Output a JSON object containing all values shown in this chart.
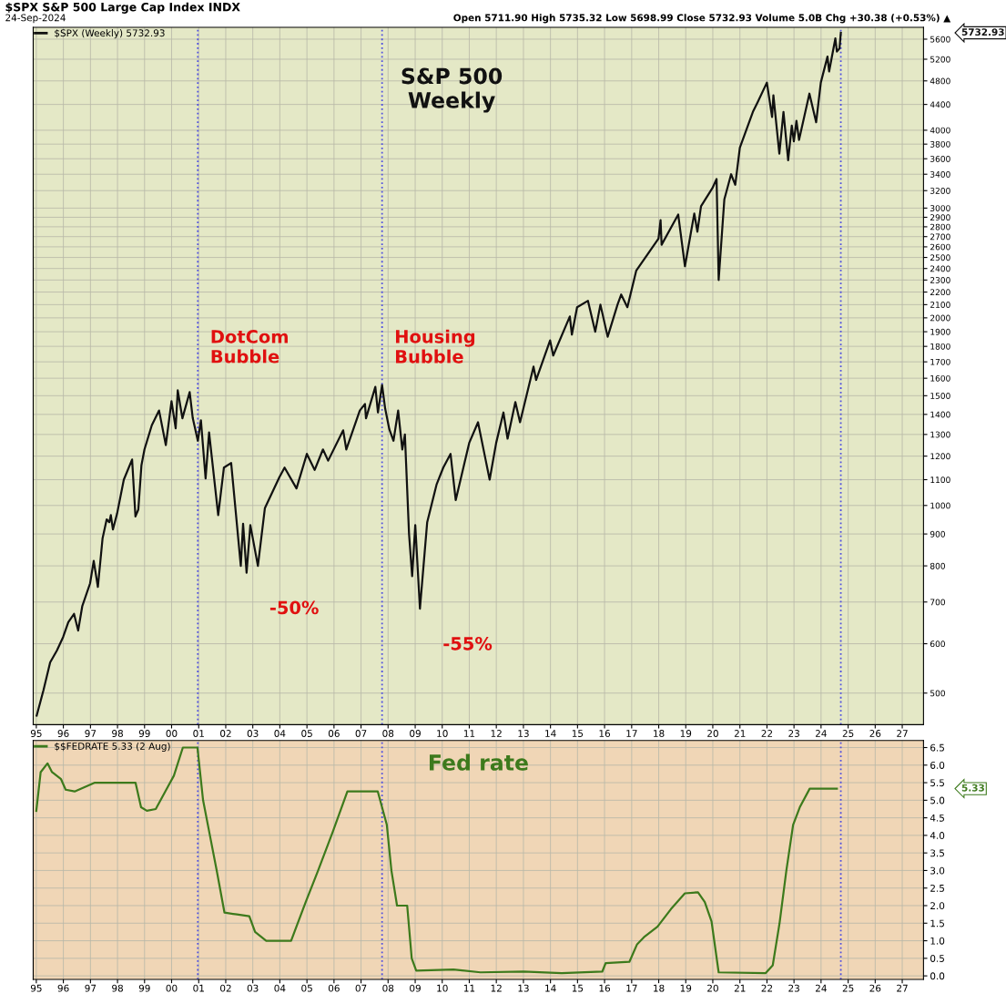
{
  "chart_data": [
    {
      "type": "line",
      "title": "$SPX S&P 500 Large Cap Index INDX",
      "subtitle": "24-Sep-2024",
      "annotations": [
        "Open 5711.90 High 5735.32 Low 5698.99 Close 5732.93 Volume 5.0B Chg +30.38 (+0.53%) ▲",
        "S&P 500\nWeekly",
        {
          "text": "-50%",
          "x": "2002-10-09",
          "y": 780
        },
        {
          "text": "-55%",
          "x": "2009-03-06",
          "y": 683
        },
        "5732.93"
      ],
      "series": [
        {
          "name": "$SPX (Weekly) 5732.93",
          "color": "#111111",
          "x": [
            "1995-01-06",
            "1995-04-07",
            "1995-07-07",
            "1995-10-06",
            "1995-12-29",
            "1996-03-08",
            "1996-05-24",
            "1996-07-19",
            "1996-09-13",
            "1996-12-27",
            "1997-02-14",
            "1997-04-11",
            "1997-06-13",
            "1997-08-08",
            "1997-09-12",
            "1997-10-03",
            "1997-10-31",
            "1997-12-26",
            "1998-03-27",
            "1998-07-17",
            "1998-08-31",
            "1998-10-09",
            "1998-11-20",
            "1998-12-31",
            "1999-04-09",
            "1999-07-16",
            "1999-10-15",
            "1999-12-31",
            "2000-02-25",
            "2000-03-24",
            "2000-05-26",
            "2000-09-01",
            "2000-10-13",
            "2000-12-20",
            "2001-01-31",
            "2001-04-04",
            "2001-05-21",
            "2001-09-21",
            "2001-12-07",
            "2002-03-15",
            "2002-07-23",
            "2002-08-23",
            "2002-10-09",
            "2002-11-29",
            "2003-03-11",
            "2003-06-13",
            "2003-12-26",
            "2004-03-05",
            "2004-08-13",
            "2004-12-31",
            "2005-04-15",
            "2005-08-05",
            "2005-10-14",
            "2006-05-05",
            "2006-06-16",
            "2006-12-15",
            "2007-02-23",
            "2007-03-09",
            "2007-07-13",
            "2007-08-17",
            "2007-10-12",
            "2007-11-23",
            "2008-01-18",
            "2008-03-14",
            "2008-05-16",
            "2008-07-11",
            "2008-08-15",
            "2008-10-10",
            "2008-11-21",
            "2009-01-02",
            "2009-03-06",
            "2009-06-12",
            "2009-10-16",
            "2010-01-15",
            "2010-04-23",
            "2010-07-02",
            "2010-12-31",
            "2011-04-29",
            "2011-08-12",
            "2011-10-03",
            "2011-12-30",
            "2012-04-06",
            "2012-06-01",
            "2012-09-14",
            "2012-11-16",
            "2013-05-17",
            "2013-06-21",
            "2013-12-27",
            "2014-02-07",
            "2014-09-19",
            "2014-10-17",
            "2014-12-26",
            "2015-05-22",
            "2015-08-28",
            "2015-11-06",
            "2016-02-12",
            "2016-06-24",
            "2016-08-12",
            "2016-11-04",
            "2017-03-03",
            "2017-12-29",
            "2018-01-26",
            "2018-02-09",
            "2018-09-21",
            "2018-12-21",
            "2019-04-26",
            "2019-06-07",
            "2019-07-26",
            "2019-12-27",
            "2020-02-21",
            "2020-03-20",
            "2020-06-05",
            "2020-09-04",
            "2020-10-30",
            "2020-12-31",
            "2021-06-25",
            "2021-09-03",
            "2021-12-31",
            "2022-03-11",
            "2022-03-29",
            "2022-06-17",
            "2022-08-12",
            "2022-10-14",
            "2022-12-02",
            "2022-12-30",
            "2023-02-03",
            "2023-03-10",
            "2023-07-28",
            "2023-10-27",
            "2023-12-29",
            "2024-03-28",
            "2024-04-19",
            "2024-07-12",
            "2024-08-02",
            "2024-09-06",
            "2024-09-24"
          ],
          "values": [
            460,
            505,
            560,
            585,
            615,
            650,
            670,
            630,
            690,
            750,
            815,
            740,
            885,
            950,
            940,
            965,
            915,
            970,
            1100,
            1185,
            960,
            985,
            1160,
            1230,
            1345,
            1420,
            1250,
            1470,
            1330,
            1530,
            1380,
            1520,
            1380,
            1270,
            1370,
            1105,
            1310,
            965,
            1150,
            1170,
            800,
            935,
            780,
            930,
            800,
            990,
            1110,
            1150,
            1065,
            1210,
            1140,
            1230,
            1180,
            1320,
            1230,
            1420,
            1455,
            1380,
            1550,
            1410,
            1560,
            1430,
            1325,
            1270,
            1420,
            1230,
            1300,
            900,
            770,
            930,
            683,
            940,
            1080,
            1150,
            1210,
            1020,
            1260,
            1360,
            1180,
            1100,
            1260,
            1410,
            1280,
            1465,
            1360,
            1670,
            1590,
            1840,
            1740,
            2010,
            1880,
            2080,
            2130,
            1900,
            2100,
            1865,
            2100,
            2180,
            2080,
            2380,
            2680,
            2870,
            2620,
            2930,
            2420,
            2940,
            2750,
            3020,
            3230,
            3340,
            2300,
            3100,
            3400,
            3270,
            3750,
            4280,
            4450,
            4770,
            4200,
            4550,
            3670,
            4280,
            3580,
            4070,
            3840,
            4140,
            3860,
            4580,
            4120,
            4770,
            5250,
            4970,
            5615,
            5350,
            5410,
            5732.93
          ]
        }
      ],
      "log": "y",
      "ylim": [
        445,
        5850
      ],
      "yticks": [
        500,
        600,
        700,
        800,
        900,
        1000,
        1100,
        1200,
        1300,
        1400,
        1500,
        1600,
        1700,
        1800,
        1900,
        2000,
        2100,
        2200,
        2300,
        2400,
        2500,
        2600,
        2700,
        2800,
        2900,
        3000,
        3200,
        3400,
        3600,
        3800,
        4000,
        4400,
        4800,
        5200,
        5600
      ],
      "xlim": [
        "1994-11-20",
        "2027-10-15"
      ],
      "xticks": [
        {
          "value": "1995-01-01",
          "label": "95"
        },
        {
          "value": "1996-01-01",
          "label": "96"
        },
        {
          "value": "1997-01-01",
          "label": "97"
        },
        {
          "value": "1998-01-01",
          "label": "98"
        },
        {
          "value": "1999-01-01",
          "label": "99"
        },
        {
          "value": "2000-01-01",
          "label": "00"
        },
        {
          "value": "2001-01-01",
          "label": "01"
        },
        {
          "value": "2002-01-01",
          "label": "02"
        },
        {
          "value": "2003-01-01",
          "label": "03"
        },
        {
          "value": "2004-01-01",
          "label": "04"
        },
        {
          "value": "2005-01-01",
          "label": "05"
        },
        {
          "value": "2006-01-01",
          "label": "06"
        },
        {
          "value": "2007-01-01",
          "label": "07"
        },
        {
          "value": "2008-01-01",
          "label": "08"
        },
        {
          "value": "2009-01-01",
          "label": "09"
        },
        {
          "value": "2010-01-01",
          "label": "10"
        },
        {
          "value": "2011-01-01",
          "label": "11"
        },
        {
          "value": "2012-01-01",
          "label": "12"
        },
        {
          "value": "2013-01-01",
          "label": "13"
        },
        {
          "value": "2014-01-01",
          "label": "14"
        },
        {
          "value": "2015-01-01",
          "label": "15"
        },
        {
          "value": "2016-01-01",
          "label": "16"
        },
        {
          "value": "2017-01-01",
          "label": "17"
        },
        {
          "value": "2018-01-01",
          "label": "18"
        },
        {
          "value": "2019-01-01",
          "label": "19"
        },
        {
          "value": "2020-01-01",
          "label": "20"
        },
        {
          "value": "2021-01-01",
          "label": "21"
        },
        {
          "value": "2022-01-01",
          "label": "22"
        },
        {
          "value": "2023-01-01",
          "label": "23"
        },
        {
          "value": "2024-01-01",
          "label": "24"
        },
        {
          "value": "2025-01-01",
          "label": "25"
        },
        {
          "value": "2026-01-01",
          "label": "26"
        },
        {
          "value": "2027-01-01",
          "label": "27"
        }
      ],
      "ref_lines": [
        {
          "axis": "x",
          "value": "2000-12-20",
          "label": "DotCom\nBubble",
          "color": "#5050e0",
          "line_style": "dotted"
        },
        {
          "axis": "x",
          "value": "2007-10-12",
          "label": "Housing\nBubble",
          "color": "#5050e0",
          "line_style": "dotted"
        },
        {
          "axis": "x",
          "value": "2024-09-24",
          "label": null,
          "color": "#5050e0",
          "line_style": "dotted"
        }
      ],
      "grid": true,
      "legend": "top left",
      "line_style": "solid",
      "marker": "none"
    },
    {
      "type": "line",
      "title": "Fed rate",
      "annotations": [
        "5.33"
      ],
      "series": [
        {
          "name": "$$FEDRATE 5.33 (2 Aug)",
          "color": "#3d7a1c",
          "x": [
            "1995-01-01",
            "1995-03-01",
            "1995-06-01",
            "1995-08-01",
            "1995-12-01",
            "1996-02-01",
            "1996-06-01",
            "1997-03-01",
            "1997-12-01",
            "1998-09-01",
            "1998-11-15",
            "1999-02-01",
            "1999-06-01",
            "1999-11-15",
            "2000-02-01",
            "2000-06-01",
            "2000-12-15",
            "2001-03-01",
            "2001-06-01",
            "2001-09-01",
            "2001-12-15",
            "2002-06-01",
            "2002-11-15",
            "2003-02-01",
            "2003-07-01",
            "2004-06-01",
            "2004-12-15",
            "2005-06-01",
            "2005-12-15",
            "2006-07-01",
            "2007-08-15",
            "2007-12-15",
            "2008-02-15",
            "2008-05-01",
            "2008-09-15",
            "2008-11-15",
            "2009-01-15",
            "2010-06-01",
            "2011-06-01",
            "2013-01-01",
            "2014-06-01",
            "2015-12-01",
            "2016-01-15",
            "2016-12-01",
            "2017-03-15",
            "2017-06-15",
            "2017-12-15",
            "2018-06-15",
            "2018-12-20",
            "2019-06-15",
            "2019-09-15",
            "2019-12-15",
            "2020-03-20",
            "2021-12-15",
            "2022-03-20",
            "2022-06-20",
            "2022-09-20",
            "2022-12-20",
            "2023-03-20",
            "2023-08-01",
            "2024-08-02"
          ],
          "values": [
            4.7,
            5.8,
            6.05,
            5.8,
            5.6,
            5.3,
            5.25,
            5.5,
            5.5,
            5.5,
            4.8,
            4.7,
            4.75,
            5.4,
            5.7,
            6.5,
            6.5,
            5.0,
            4.0,
            3.0,
            1.8,
            1.75,
            1.7,
            1.25,
            1.0,
            1.0,
            2.1,
            3.0,
            4.1,
            5.25,
            5.25,
            4.3,
            3.0,
            2.0,
            2.0,
            0.5,
            0.15,
            0.18,
            0.1,
            0.12,
            0.08,
            0.12,
            0.36,
            0.4,
            0.9,
            1.1,
            1.4,
            1.9,
            2.35,
            2.38,
            2.1,
            1.55,
            0.1,
            0.08,
            0.3,
            1.5,
            3.0,
            4.3,
            4.8,
            5.33,
            5.33
          ]
        }
      ],
      "ylim": [
        -0.1,
        6.7
      ],
      "yticks": [
        {
          "value": 0,
          "label": "0.0"
        },
        0.5,
        {
          "value": 1,
          "label": "1.0"
        },
        1.5,
        {
          "value": 2,
          "label": "2.0"
        },
        2.5,
        {
          "value": 3,
          "label": "3.0"
        },
        3.5,
        {
          "value": 4,
          "label": "4.0"
        },
        4.5,
        {
          "value": 5,
          "label": "5.0"
        },
        5.5,
        {
          "value": 6,
          "label": "6.0"
        },
        6.5
      ],
      "xlim": [
        "1994-11-20",
        "2027-10-15"
      ],
      "xticks": [
        {
          "value": "1995-01-01",
          "label": "95"
        },
        {
          "value": "1996-01-01",
          "label": "96"
        },
        {
          "value": "1997-01-01",
          "label": "97"
        },
        {
          "value": "1998-01-01",
          "label": "98"
        },
        {
          "value": "1999-01-01",
          "label": "99"
        },
        {
          "value": "2000-01-01",
          "label": "00"
        },
        {
          "value": "2001-01-01",
          "label": "01"
        },
        {
          "value": "2002-01-01",
          "label": "02"
        },
        {
          "value": "2003-01-01",
          "label": "03"
        },
        {
          "value": "2004-01-01",
          "label": "04"
        },
        {
          "value": "2005-01-01",
          "label": "05"
        },
        {
          "value": "2006-01-01",
          "label": "06"
        },
        {
          "value": "2007-01-01",
          "label": "07"
        },
        {
          "value": "2008-01-01",
          "label": "08"
        },
        {
          "value": "2009-01-01",
          "label": "09"
        },
        {
          "value": "2010-01-01",
          "label": "10"
        },
        {
          "value": "2011-01-01",
          "label": "11"
        },
        {
          "value": "2012-01-01",
          "label": "12"
        },
        {
          "value": "2013-01-01",
          "label": "13"
        },
        {
          "value": "2014-01-01",
          "label": "14"
        },
        {
          "value": "2015-01-01",
          "label": "15"
        },
        {
          "value": "2016-01-01",
          "label": "16"
        },
        {
          "value": "2017-01-01",
          "label": "17"
        },
        {
          "value": "2018-01-01",
          "label": "18"
        },
        {
          "value": "2019-01-01",
          "label": "19"
        },
        {
          "value": "2020-01-01",
          "label": "20"
        },
        {
          "value": "2021-01-01",
          "label": "21"
        },
        {
          "value": "2022-01-01",
          "label": "22"
        },
        {
          "value": "2023-01-01",
          "label": "23"
        },
        {
          "value": "2024-01-01",
          "label": "24"
        },
        {
          "value": "2025-01-01",
          "label": "25"
        },
        {
          "value": "2026-01-01",
          "label": "26"
        },
        {
          "value": "2027-01-01",
          "label": "27"
        }
      ],
      "ref_lines": [
        {
          "axis": "x",
          "value": "2000-12-20",
          "label": null,
          "color": "#5050e0",
          "line_style": "dotted"
        },
        {
          "axis": "x",
          "value": "2007-10-12",
          "label": null,
          "color": "#5050e0",
          "line_style": "dotted"
        },
        {
          "axis": "x",
          "value": "2024-09-24",
          "label": null,
          "color": "#5050e0",
          "line_style": "dotted"
        }
      ],
      "grid": true,
      "legend": "top left",
      "line_style": "solid",
      "marker": "none"
    }
  ]
}
